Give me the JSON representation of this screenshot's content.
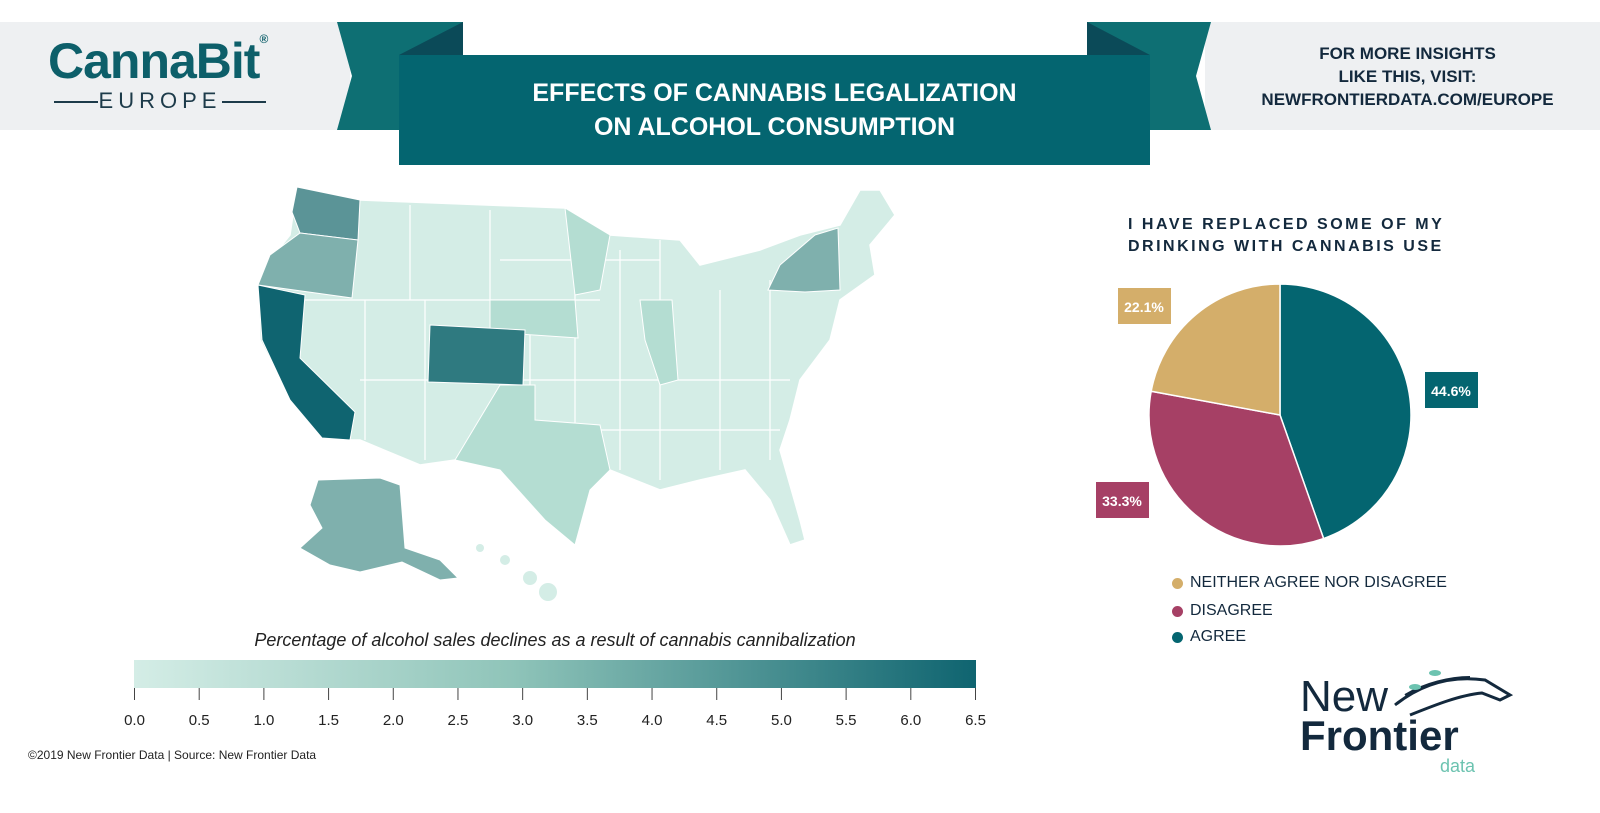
{
  "header": {
    "logo_main": "CannaBit",
    "logo_sub": "EUROPE",
    "title_line1": "EFFECTS OF CANNABIS LEGALIZATION",
    "title_line2": "ON ALCOHOL CONSUMPTION",
    "insights_line1": "FOR MORE INSIGHTS",
    "insights_line2": "LIKE THIS, VISIT:",
    "insights_line3": "NEWFRONTIERDATA.COM/EUROPE"
  },
  "colors": {
    "teal": "#046570",
    "teal_flap": "#0e6f73",
    "fold": "#0b4a58",
    "gold": "#d4ae6a",
    "magenta": "#a64065",
    "map_light": "#d4ede6",
    "map_scale_dark": "#0f6470"
  },
  "chart_data": [
    {
      "type": "heatmap",
      "subtype": "choropleth-map",
      "caption": "Percentage of alcohol sales declines as a result of cannabis cannibalization",
      "scale_range": [
        0,
        6.5
      ],
      "scale_ticks": [
        "0.0",
        "0.5",
        "1.0",
        "1.5",
        "2.0",
        "2.5",
        "3.0",
        "3.5",
        "4.0",
        "4.5",
        "5.0",
        "5.5",
        "6.0",
        "6.5"
      ],
      "regions": [
        {
          "name": "California",
          "value": 6.5
        },
        {
          "name": "Colorado",
          "value": 5.5
        },
        {
          "name": "Washington",
          "value": 4.5
        },
        {
          "name": "Oregon",
          "value": 3.5
        },
        {
          "name": "New York",
          "value": 3.5
        },
        {
          "name": "Alaska",
          "value": 3.5
        },
        {
          "name": "Other states",
          "value": 1.0
        }
      ]
    },
    {
      "type": "pie",
      "title_line1": "I HAVE REPLACED SOME OF MY",
      "title_line2": "DRINKING WITH CANNABIS USE",
      "slices": [
        {
          "label": "AGREE",
          "value": 44.6,
          "text": "44.6%",
          "color": "#046570"
        },
        {
          "label": "DISAGREE",
          "value": 33.3,
          "text": "33.3%",
          "color": "#a64065"
        },
        {
          "label": "NEITHER AGREE NOR DISAGREE",
          "value": 22.1,
          "text": "22.1%",
          "color": "#d4ae6a"
        }
      ],
      "legend": [
        "NEITHER AGREE NOR DISAGREE",
        "DISAGREE",
        "AGREE"
      ]
    }
  ],
  "footer": "©2019  New Frontier Data | Source: New Frontier Data",
  "brand": {
    "line1": "New",
    "line2": "Frontier",
    "line3": "data"
  }
}
